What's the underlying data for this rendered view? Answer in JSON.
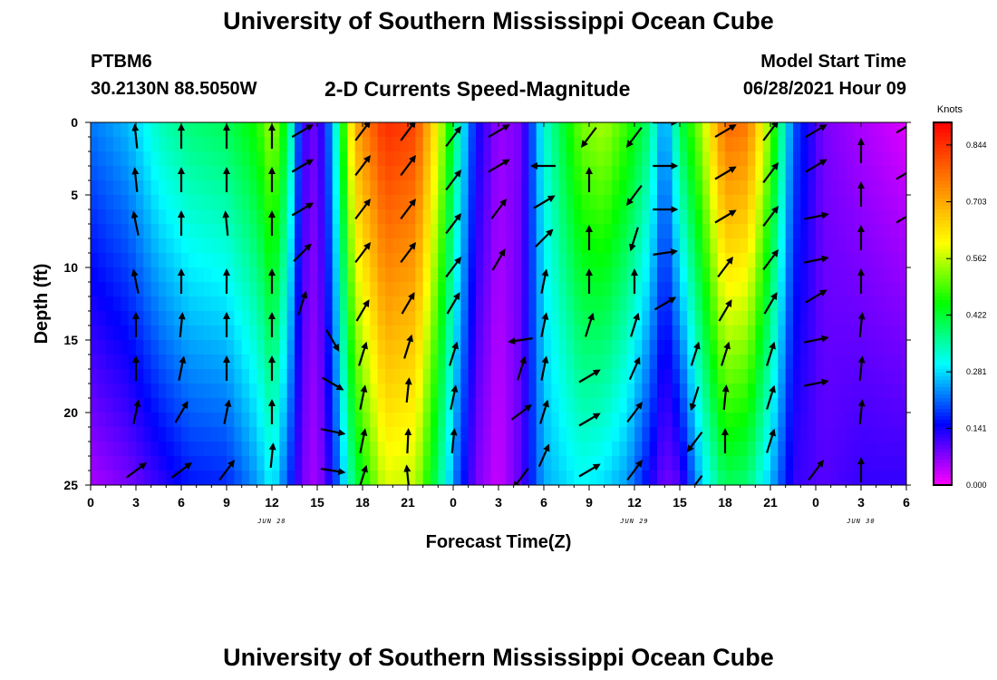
{
  "header": {
    "title": "University of Southern Mississippi Ocean Cube",
    "station": "PTBM6",
    "coords": "30.2130N  88.5050W",
    "subtitle": "2-D Currents Speed-Magnitude",
    "model_start_label": "Model Start Time",
    "model_start_value": "06/28/2021 Hour 09"
  },
  "footer": {
    "title": "University of Southern Mississippi Ocean Cube"
  },
  "chart_data": {
    "type": "heatmap",
    "title": "2-D Currents Speed-Magnitude",
    "xlabel": "Forecast Time(Z)",
    "ylabel": "Depth (ft)",
    "x_unit": "hours from 00Z Jun 28",
    "x_range": [
      0,
      54
    ],
    "x_ticks": [
      0,
      3,
      6,
      9,
      12,
      15,
      18,
      21,
      24,
      27,
      30,
      33,
      36,
      39,
      42,
      45,
      48,
      51,
      54
    ],
    "x_tick_labels": [
      "0",
      "3",
      "6",
      "9",
      "12",
      "15",
      "18",
      "21",
      "0",
      "3",
      "6",
      "9",
      "12",
      "15",
      "18",
      "21",
      "0",
      "3",
      "6"
    ],
    "date_labels": [
      {
        "x": 12,
        "text": "JUN 28"
      },
      {
        "x": 36,
        "text": "JUN 29"
      },
      {
        "x": 51,
        "text": "JUN 30"
      }
    ],
    "y_range": [
      0,
      25
    ],
    "y_inverted": true,
    "y_ticks": [
      0,
      5,
      10,
      15,
      20,
      25
    ],
    "colorbar": {
      "title": "Knots",
      "min": 0.0,
      "max": 0.9,
      "tick_values": [
        0.0,
        0.141,
        0.281,
        0.422,
        0.562,
        0.703,
        0.844
      ],
      "tick_labels": [
        "0.000",
        "0.141",
        "0.281",
        "0.422",
        "0.562",
        "0.703",
        "0.844"
      ],
      "colors": [
        "#ff00ff",
        "#0000ff",
        "#00ffff",
        "#00ff00",
        "#ffff00",
        "#ff8000",
        "#ff0000"
      ]
    },
    "speed_bands": [
      {
        "t": 0,
        "shallow": 0.22,
        "deep": 0.05
      },
      {
        "t": 2.5,
        "shallow": 0.26,
        "deep": 0.08
      },
      {
        "t": 4.5,
        "shallow": 0.34,
        "deep": 0.12
      },
      {
        "t": 6.5,
        "shallow": 0.38,
        "deep": 0.16
      },
      {
        "t": 9,
        "shallow": 0.4,
        "deep": 0.17
      },
      {
        "t": 11,
        "shallow": 0.46,
        "deep": 0.24
      },
      {
        "t": 12,
        "shallow": 0.55,
        "deep": 0.3
      },
      {
        "t": 13,
        "shallow": 0.42,
        "deep": 0.2
      },
      {
        "t": 14,
        "shallow": 0.12,
        "deep": 0.08
      },
      {
        "t": 15,
        "shallow": 0.08,
        "deep": 0.05
      },
      {
        "t": 16,
        "shallow": 0.25,
        "deep": 0.15
      },
      {
        "t": 17.5,
        "shallow": 0.7,
        "deep": 0.4
      },
      {
        "t": 19.5,
        "shallow": 0.85,
        "deep": 0.58
      },
      {
        "t": 21.5,
        "shallow": 0.82,
        "deep": 0.56
      },
      {
        "t": 23,
        "shallow": 0.6,
        "deep": 0.38
      },
      {
        "t": 24.3,
        "shallow": 0.35,
        "deep": 0.2
      },
      {
        "t": 25.5,
        "shallow": 0.15,
        "deep": 0.08
      },
      {
        "t": 27,
        "shallow": 0.06,
        "deep": 0.03
      },
      {
        "t": 28.5,
        "shallow": 0.08,
        "deep": 0.1
      },
      {
        "t": 30,
        "shallow": 0.32,
        "deep": 0.25
      },
      {
        "t": 32.5,
        "shallow": 0.52,
        "deep": 0.3
      },
      {
        "t": 34,
        "shallow": 0.55,
        "deep": 0.28
      },
      {
        "t": 35.5,
        "shallow": 0.48,
        "deep": 0.24
      },
      {
        "t": 37,
        "shallow": 0.38,
        "deep": 0.14
      },
      {
        "t": 38,
        "shallow": 0.22,
        "deep": 0.08
      },
      {
        "t": 39,
        "shallow": 0.4,
        "deep": 0.1
      },
      {
        "t": 40.5,
        "shallow": 0.55,
        "deep": 0.28
      },
      {
        "t": 42,
        "shallow": 0.78,
        "deep": 0.4
      },
      {
        "t": 43.5,
        "shallow": 0.76,
        "deep": 0.38
      },
      {
        "t": 45,
        "shallow": 0.52,
        "deep": 0.26
      },
      {
        "t": 46.5,
        "shallow": 0.2,
        "deep": 0.12
      },
      {
        "t": 48.5,
        "shallow": 0.08,
        "deep": 0.1
      },
      {
        "t": 51,
        "shallow": 0.05,
        "deep": 0.12
      },
      {
        "t": 54,
        "shallow": 0.02,
        "deep": 0.12
      }
    ],
    "vectors": [
      {
        "t": 3,
        "d": [
          [
            1,
            1,
            -0.1,
            0.98
          ],
          [
            4,
            1,
            -0.1,
            0.98
          ],
          [
            7,
            1,
            -0.2,
            0.97
          ],
          [
            11,
            1,
            -0.2,
            0.97
          ],
          [
            14,
            1,
            0,
            1
          ],
          [
            17,
            1,
            0,
            1
          ],
          [
            20,
            1,
            0.2,
            0.97
          ],
          [
            24,
            1,
            0.8,
            0.6
          ]
        ]
      },
      {
        "t": 6,
        "d": [
          [
            1,
            1,
            0,
            1
          ],
          [
            4,
            1,
            0,
            1
          ],
          [
            7,
            1,
            0,
            1
          ],
          [
            11,
            1,
            0,
            1
          ],
          [
            14,
            1,
            0.1,
            0.99
          ],
          [
            17,
            1,
            0.2,
            0.97
          ],
          [
            20,
            1,
            0.5,
            0.85
          ],
          [
            24,
            1,
            0.8,
            0.6
          ]
        ]
      },
      {
        "t": 9,
        "d": [
          [
            1,
            1,
            0,
            1
          ],
          [
            4,
            1,
            0,
            1
          ],
          [
            7,
            1,
            -0.1,
            0.99
          ],
          [
            11,
            1,
            0,
            1
          ],
          [
            14,
            1,
            0,
            1
          ],
          [
            17,
            1,
            0,
            1
          ],
          [
            20,
            1,
            0.2,
            0.97
          ],
          [
            24,
            1,
            0.6,
            0.8
          ]
        ]
      },
      {
        "t": 12,
        "d": [
          [
            1,
            1,
            0,
            1
          ],
          [
            4,
            1,
            0,
            1
          ],
          [
            7,
            1,
            0,
            1
          ],
          [
            11,
            1,
            0,
            1
          ],
          [
            14,
            1,
            0,
            1
          ],
          [
            17,
            1,
            0,
            1
          ],
          [
            20,
            1,
            0,
            1
          ],
          [
            23,
            1,
            0.1,
            0.99
          ]
        ]
      },
      {
        "t": 14,
        "d": [
          [
            0.6,
            1,
            0.85,
            0.5
          ],
          [
            3,
            1,
            0.85,
            0.5
          ],
          [
            6,
            1,
            0.85,
            0.5
          ],
          [
            9,
            1,
            0.7,
            0.7
          ],
          [
            12.5,
            1,
            0.3,
            0.95
          ]
        ]
      },
      {
        "t": 16,
        "d": [
          [
            15,
            1,
            0.5,
            -0.85
          ],
          [
            18,
            1,
            0.85,
            -0.5
          ],
          [
            21.3,
            1,
            0.98,
            -0.2
          ],
          [
            24,
            1,
            0.98,
            -0.15
          ]
        ]
      },
      {
        "t": 18,
        "d": [
          [
            0.6,
            1,
            0.6,
            0.8
          ],
          [
            3,
            1,
            0.6,
            0.8
          ],
          [
            6,
            1,
            0.6,
            0.8
          ],
          [
            9,
            1,
            0.6,
            0.8
          ],
          [
            13,
            1,
            0.5,
            0.85
          ],
          [
            16,
            1,
            0.3,
            0.95
          ],
          [
            19,
            1,
            0.2,
            0.98
          ],
          [
            22,
            1,
            0.2,
            0.98
          ],
          [
            24.5,
            1,
            0.3,
            0.95
          ]
        ]
      },
      {
        "t": 21,
        "d": [
          [
            0.6,
            1,
            0.6,
            0.8
          ],
          [
            3,
            1,
            0.6,
            0.8
          ],
          [
            6,
            1,
            0.6,
            0.8
          ],
          [
            9,
            1,
            0.6,
            0.8
          ],
          [
            12.5,
            1,
            0.5,
            0.85
          ],
          [
            15.5,
            1,
            0.3,
            0.95
          ],
          [
            18.5,
            1,
            0.1,
            0.99
          ],
          [
            22,
            1,
            0.05,
            1
          ],
          [
            24.5,
            1,
            -0.1,
            0.98
          ]
        ]
      },
      {
        "t": 24,
        "d": [
          [
            1,
            1,
            0.6,
            0.8
          ],
          [
            4,
            1,
            0.6,
            0.8
          ],
          [
            7,
            1,
            0.6,
            0.8
          ],
          [
            10,
            1,
            0.6,
            0.8
          ],
          [
            12.5,
            1,
            0.5,
            0.85
          ],
          [
            16,
            1,
            0.3,
            0.95
          ],
          [
            19,
            1,
            0.2,
            0.98
          ],
          [
            22,
            1,
            0.1,
            0.99
          ]
        ]
      },
      {
        "t": 27,
        "d": [
          [
            0.6,
            1,
            0.85,
            0.5
          ],
          [
            3,
            1,
            0.85,
            0.5
          ],
          [
            6,
            1,
            0.6,
            0.8
          ],
          [
            9.5,
            1,
            0.5,
            0.85
          ]
        ]
      },
      {
        "t": 28.5,
        "d": [
          [
            15,
            1,
            -0.98,
            -0.15
          ],
          [
            17,
            1,
            0.3,
            0.95
          ],
          [
            20,
            1,
            0.8,
            0.6
          ],
          [
            24.5,
            1,
            -0.6,
            -0.8
          ]
        ]
      },
      {
        "t": 30,
        "d": [
          [
            3,
            1,
            -1,
            0
          ],
          [
            5.5,
            1,
            0.85,
            0.5
          ],
          [
            8,
            1,
            0.7,
            0.7
          ],
          [
            11,
            1,
            0.2,
            0.98
          ],
          [
            14,
            1,
            0.2,
            0.98
          ],
          [
            17,
            1,
            0.2,
            0.98
          ],
          [
            20,
            1,
            0.3,
            0.95
          ],
          [
            23,
            1,
            0.4,
            0.9
          ]
        ]
      },
      {
        "t": 33,
        "d": [
          [
            1,
            1,
            -0.6,
            -0.8
          ],
          [
            4,
            1,
            0,
            1
          ],
          [
            8,
            1,
            0,
            1
          ],
          [
            11,
            1,
            0,
            1
          ],
          [
            14,
            1,
            0.3,
            0.95
          ],
          [
            17.5,
            1,
            0.85,
            0.5
          ],
          [
            20.5,
            1,
            0.85,
            0.5
          ],
          [
            24,
            1,
            0.85,
            0.5
          ]
        ]
      },
      {
        "t": 36,
        "d": [
          [
            1,
            1,
            -0.6,
            -0.8
          ],
          [
            5,
            1,
            -0.6,
            -0.8
          ],
          [
            8,
            1,
            -0.3,
            -0.95
          ],
          [
            11,
            1,
            0,
            1
          ],
          [
            14,
            1,
            0.3,
            0.95
          ],
          [
            17,
            1,
            0.4,
            0.9
          ],
          [
            20,
            1,
            0.6,
            0.8
          ],
          [
            24,
            1,
            0.6,
            0.8
          ]
        ]
      },
      {
        "t": 38,
        "d": [
          [
            0,
            1,
            1,
            0
          ],
          [
            3,
            1,
            1,
            0
          ],
          [
            6,
            1,
            1,
            0
          ],
          [
            9,
            1,
            0.98,
            0.15
          ],
          [
            12.5,
            1,
            0.85,
            0.5
          ]
        ]
      },
      {
        "t": 40,
        "d": [
          [
            16,
            1,
            0.3,
            0.95
          ],
          [
            19,
            1,
            -0.3,
            -0.95
          ],
          [
            22,
            1,
            -0.6,
            -0.8
          ],
          [
            25,
            1,
            -0.6,
            -0.8
          ]
        ]
      },
      {
        "t": 42,
        "d": [
          [
            0.6,
            1,
            0.85,
            0.5
          ],
          [
            3.5,
            1,
            0.85,
            0.5
          ],
          [
            6.5,
            1,
            0.85,
            0.5
          ],
          [
            10,
            1,
            0.6,
            0.8
          ],
          [
            13,
            1,
            0.5,
            0.85
          ],
          [
            16,
            1,
            0.3,
            0.95
          ],
          [
            19,
            1,
            0.1,
            0.99
          ],
          [
            22,
            1,
            0,
            1
          ]
        ]
      },
      {
        "t": 45,
        "d": [
          [
            0.6,
            1,
            0.6,
            0.8
          ],
          [
            3.5,
            1,
            0.6,
            0.8
          ],
          [
            6.5,
            1,
            0.6,
            0.8
          ],
          [
            9.5,
            1,
            0.6,
            0.8
          ],
          [
            12.5,
            1,
            0.5,
            0.85
          ],
          [
            16,
            1,
            0.3,
            0.95
          ],
          [
            19,
            1,
            0.3,
            0.95
          ],
          [
            22,
            1,
            0.3,
            0.95
          ]
        ]
      },
      {
        "t": 48,
        "d": [
          [
            0.6,
            1,
            0.85,
            0.5
          ],
          [
            3,
            1,
            0.85,
            0.5
          ],
          [
            6.5,
            1,
            0.98,
            0.2
          ],
          [
            9.5,
            1,
            0.98,
            0.2
          ],
          [
            12,
            1,
            0.85,
            0.5
          ],
          [
            15,
            1,
            0.98,
            0.2
          ],
          [
            18,
            1,
            0.98,
            0.2
          ],
          [
            24,
            1,
            0.6,
            0.8
          ]
        ]
      },
      {
        "t": 51,
        "d": [
          [
            2,
            1,
            0,
            1
          ],
          [
            5,
            1,
            0,
            1
          ],
          [
            8,
            1,
            0,
            1
          ],
          [
            11,
            1,
            0,
            1
          ],
          [
            14,
            1,
            0.1,
            0.99
          ],
          [
            17,
            1,
            0.1,
            0.99
          ],
          [
            20,
            1,
            0.1,
            0.99
          ],
          [
            24,
            1,
            0,
            1
          ]
        ]
      },
      {
        "t": 54,
        "d": [
          [
            0.3,
            1,
            0.85,
            0.5
          ],
          [
            3.5,
            1,
            0.85,
            0.5
          ],
          [
            6.5,
            1,
            0.85,
            0.5
          ]
        ]
      }
    ]
  }
}
